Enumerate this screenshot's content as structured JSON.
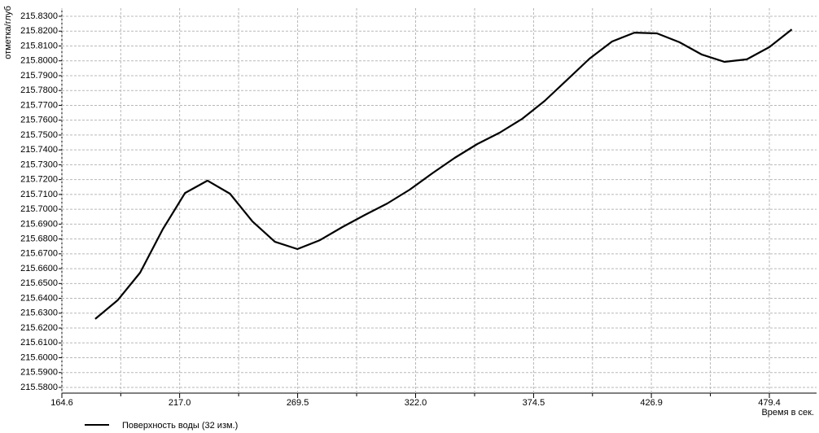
{
  "chart_data": {
    "type": "line",
    "y_label": "отметка/глуб",
    "x_label": "Время в сек.",
    "xlim": [
      164.6,
      500.4
    ],
    "xticks": [
      164.6,
      {
        "value": 217.0,
        "label": "217.0"
      },
      269.5,
      {
        "value": 322.0,
        "label": "322.0"
      },
      374.5,
      426.9,
      479.4
    ],
    "xminorticks": [
      190.8,
      243.25,
      295.75,
      348.25,
      400.7,
      453.15
    ],
    "ylim": [
      215.58,
      215.83
    ],
    "yticks": [
      {
        "value": 215.58,
        "label": "215.5800"
      },
      {
        "value": 215.59,
        "label": "215.5900"
      },
      {
        "value": 215.6,
        "label": "215.6000"
      },
      {
        "value": 215.61,
        "label": "215.6100"
      },
      {
        "value": 215.62,
        "label": "215.6200"
      },
      {
        "value": 215.63,
        "label": "215.6300"
      },
      {
        "value": 215.64,
        "label": "215.6400"
      },
      {
        "value": 215.65,
        "label": "215.6500"
      },
      {
        "value": 215.66,
        "label": "215.6600"
      },
      {
        "value": 215.67,
        "label": "215.6700"
      },
      {
        "value": 215.68,
        "label": "215.6800"
      },
      {
        "value": 215.69,
        "label": "215.6900"
      },
      {
        "value": 215.7,
        "label": "215.7000"
      },
      {
        "value": 215.71,
        "label": "215.7100"
      },
      {
        "value": 215.72,
        "label": "215.7200"
      },
      {
        "value": 215.73,
        "label": "215.7300"
      },
      {
        "value": 215.74,
        "label": "215.7400"
      },
      {
        "value": 215.75,
        "label": "215.7500"
      },
      {
        "value": 215.76,
        "label": "215.7600"
      },
      {
        "value": 215.77,
        "label": "215.7700"
      },
      {
        "value": 215.78,
        "label": "215.7800"
      },
      {
        "value": 215.79,
        "label": "215.7900"
      },
      {
        "value": 215.8,
        "label": "215.8000"
      },
      {
        "value": 215.81,
        "label": "215.8100"
      },
      {
        "value": 215.82,
        "label": "215.8200"
      },
      {
        "value": 215.83,
        "label": "215.8300"
      }
    ],
    "grid": true,
    "x": [
      179.4,
      189.4,
      199.4,
      209.4,
      219.4,
      229.4,
      239.4,
      249.4,
      259.4,
      269.4,
      279.4,
      289.4,
      299.4,
      309.4,
      319.4,
      329.4,
      339.4,
      349.4,
      359.4,
      369.4,
      379.4,
      389.4,
      399.4,
      409.4,
      419.4,
      429.4,
      439.4,
      449.4,
      459.4,
      469.4,
      479.4,
      489.4
    ],
    "series": [
      {
        "name": "Поверхность воды  (32 изм.)",
        "color": "#000000",
        "values": [
          215.6261,
          215.6387,
          215.6573,
          215.6863,
          215.711,
          215.7193,
          215.7105,
          215.6918,
          215.6781,
          215.6732,
          215.6792,
          215.688,
          215.6962,
          215.7039,
          215.7132,
          215.7242,
          215.7346,
          215.7439,
          215.7516,
          215.7609,
          215.773,
          215.7872,
          215.8015,
          215.813,
          215.819,
          215.8185,
          215.8125,
          215.8042,
          215.7993,
          215.801,
          215.8092,
          215.8212
        ]
      }
    ]
  }
}
